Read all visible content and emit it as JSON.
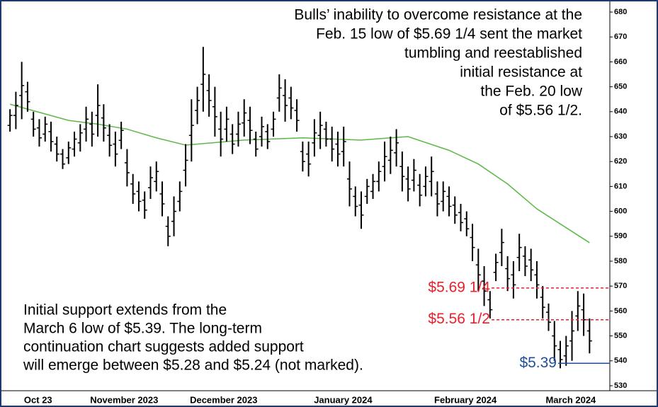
{
  "chart_data": {
    "type": "ohlc",
    "color": "#000000",
    "ylim": [
      528,
      683.5
    ],
    "yticks": [
      530,
      540,
      550,
      560,
      570,
      580,
      590,
      600,
      610,
      620,
      630,
      640,
      650,
      660,
      670,
      680
    ],
    "xlim": [
      -0.5,
      101.5
    ],
    "xticks": [
      {
        "value": 4.8,
        "label": "Oct 23"
      },
      {
        "value": 19.5,
        "label": "November 2023"
      },
      {
        "value": 36.5,
        "label": "December 2023"
      },
      {
        "value": 56.9,
        "label": "January 2024"
      },
      {
        "value": 77.8,
        "label": "February 2024"
      },
      {
        "value": 95.8,
        "label": "March 2024"
      }
    ],
    "open": [
      634.5,
      638.5,
      646.5,
      648,
      637,
      633.5,
      631,
      632,
      627,
      623,
      621.5,
      625,
      627.5,
      633,
      635,
      638.5,
      637.5,
      630.5,
      627,
      628.5,
      619.5,
      611,
      608,
      604.5,
      609.5,
      612,
      607,
      594,
      596,
      604,
      616.5,
      630.5,
      640.5,
      651,
      648.5,
      642,
      633,
      633,
      631,
      631,
      635.5,
      636.5,
      629,
      630,
      632,
      633,
      645.5,
      646.5,
      645.5,
      640.5,
      624,
      623,
      627.5,
      630.5,
      633,
      629,
      627,
      624,
      613,
      606,
      602.5,
      606,
      608,
      612,
      618,
      620.5,
      623.5,
      618,
      613,
      612.5,
      610.5,
      610,
      612,
      607,
      604,
      606,
      602.5,
      599.5,
      597,
      589.5,
      578.5,
      572,
      564.5,
      575.5,
      583.5,
      577,
      574.5,
      581.5,
      582,
      580.5,
      574.5,
      565.5,
      559.5,
      550,
      544.5,
      542,
      548,
      558,
      560.5,
      552
    ],
    "high": [
      641,
      648,
      660,
      652,
      640,
      637,
      638,
      636,
      630,
      625,
      628,
      632,
      635,
      642,
      640,
      651,
      643,
      635,
      632,
      636,
      625,
      615,
      612,
      608,
      618,
      620,
      612,
      598,
      606,
      612,
      627,
      645,
      650,
      666,
      655,
      650,
      640,
      642,
      635,
      640,
      645,
      642,
      632,
      638,
      635,
      640,
      655,
      653,
      650,
      645,
      628,
      628,
      637,
      640,
      636,
      634,
      632,
      634,
      620,
      610,
      608,
      613,
      615,
      620,
      628,
      630,
      633,
      624,
      618,
      621,
      615,
      618,
      622,
      612,
      612,
      610,
      606,
      603,
      600,
      595,
      585,
      578,
      568,
      583,
      593,
      582,
      580,
      591,
      586,
      585,
      580,
      570,
      563,
      556,
      548,
      550,
      560,
      568,
      567,
      557
    ],
    "low": [
      632,
      633,
      637,
      640,
      630,
      626,
      628,
      624,
      620,
      617,
      619,
      622,
      624,
      628,
      626,
      630,
      628,
      622,
      618,
      625,
      610,
      603,
      600,
      597,
      605,
      608,
      598,
      586,
      590,
      600,
      610,
      620,
      635,
      640,
      638,
      630,
      622,
      628,
      623,
      626,
      630,
      627,
      622,
      626,
      625,
      630,
      640,
      636,
      637,
      632,
      616,
      614,
      622,
      625,
      626,
      620,
      618,
      618,
      602,
      598,
      593,
      603,
      605,
      608,
      612,
      615,
      618,
      608,
      604,
      608,
      602,
      606,
      606,
      598,
      600,
      598,
      595,
      592,
      590,
      580,
      568,
      562,
      557,
      572,
      578,
      568,
      565,
      576,
      574,
      572,
      565,
      557,
      552,
      540,
      537,
      538,
      540,
      552,
      550,
      543
    ],
    "close": [
      638.5,
      642.5,
      650.5,
      644,
      633,
      629.5,
      635,
      628,
      623,
      619,
      625.5,
      629,
      631.5,
      637,
      631,
      642.5,
      633.5,
      626.5,
      623,
      632.5,
      615.5,
      607,
      604,
      600.5,
      613.5,
      616,
      603,
      590,
      600,
      608,
      620.5,
      634.5,
      644.5,
      655,
      644.5,
      638,
      629,
      637,
      627,
      635,
      639.5,
      632.5,
      625,
      634,
      628,
      637,
      649.5,
      642.5,
      641.5,
      636.5,
      620,
      619,
      631.5,
      634.5,
      629,
      625,
      623,
      628,
      609,
      602,
      598.5,
      610,
      612,
      616,
      622,
      624.5,
      627.5,
      614,
      609,
      616.5,
      606.5,
      614,
      616,
      603,
      608,
      602,
      598.5,
      595.5,
      593,
      585.5,
      574.5,
      568,
      560.5,
      579.5,
      587.5,
      573,
      570.5,
      585.5,
      578,
      576.5,
      570.5,
      561.5,
      555.5,
      546,
      540.5,
      546,
      552,
      562,
      556.5,
      548
    ],
    "moving_average": {
      "color": "#5cb848",
      "x": [
        0,
        10,
        15,
        20,
        25,
        30,
        40,
        50,
        60,
        65,
        68,
        75,
        80,
        85,
        90,
        99
      ],
      "values": [
        643,
        636.5,
        635,
        633,
        629.5,
        626.6,
        628.6,
        629.5,
        628.6,
        629.5,
        630,
        624.5,
        619,
        611,
        601,
        587.4
      ]
    },
    "levels": [
      {
        "value": 569.25,
        "label": "$5.69 1/4",
        "color": "#e8212b",
        "style": "dashed"
      },
      {
        "value": 556.5,
        "label": "$5.56 1/2",
        "color": "#e8212b",
        "style": "dashed"
      },
      {
        "value": 539,
        "label": "$5.39",
        "color": "#1f4e9c",
        "style": "solid"
      }
    ],
    "annotations": [
      {
        "align": "right",
        "lines": [
          "Bulls’ inability to overcome resistance at the",
          "Feb. 15 low of $5.69 1/4 sent the market",
          "tumbling and reestablished",
          "initial resistance at",
          "the Feb. 20 low",
          "of $5.56 1/2."
        ]
      },
      {
        "align": "left",
        "lines": [
          "Initial support extends from the",
          "March 6 low of $5.39. The long-term",
          "continuation chart suggests added support",
          "will emerge between $5.28 and $5.24 (not marked)."
        ]
      }
    ]
  }
}
